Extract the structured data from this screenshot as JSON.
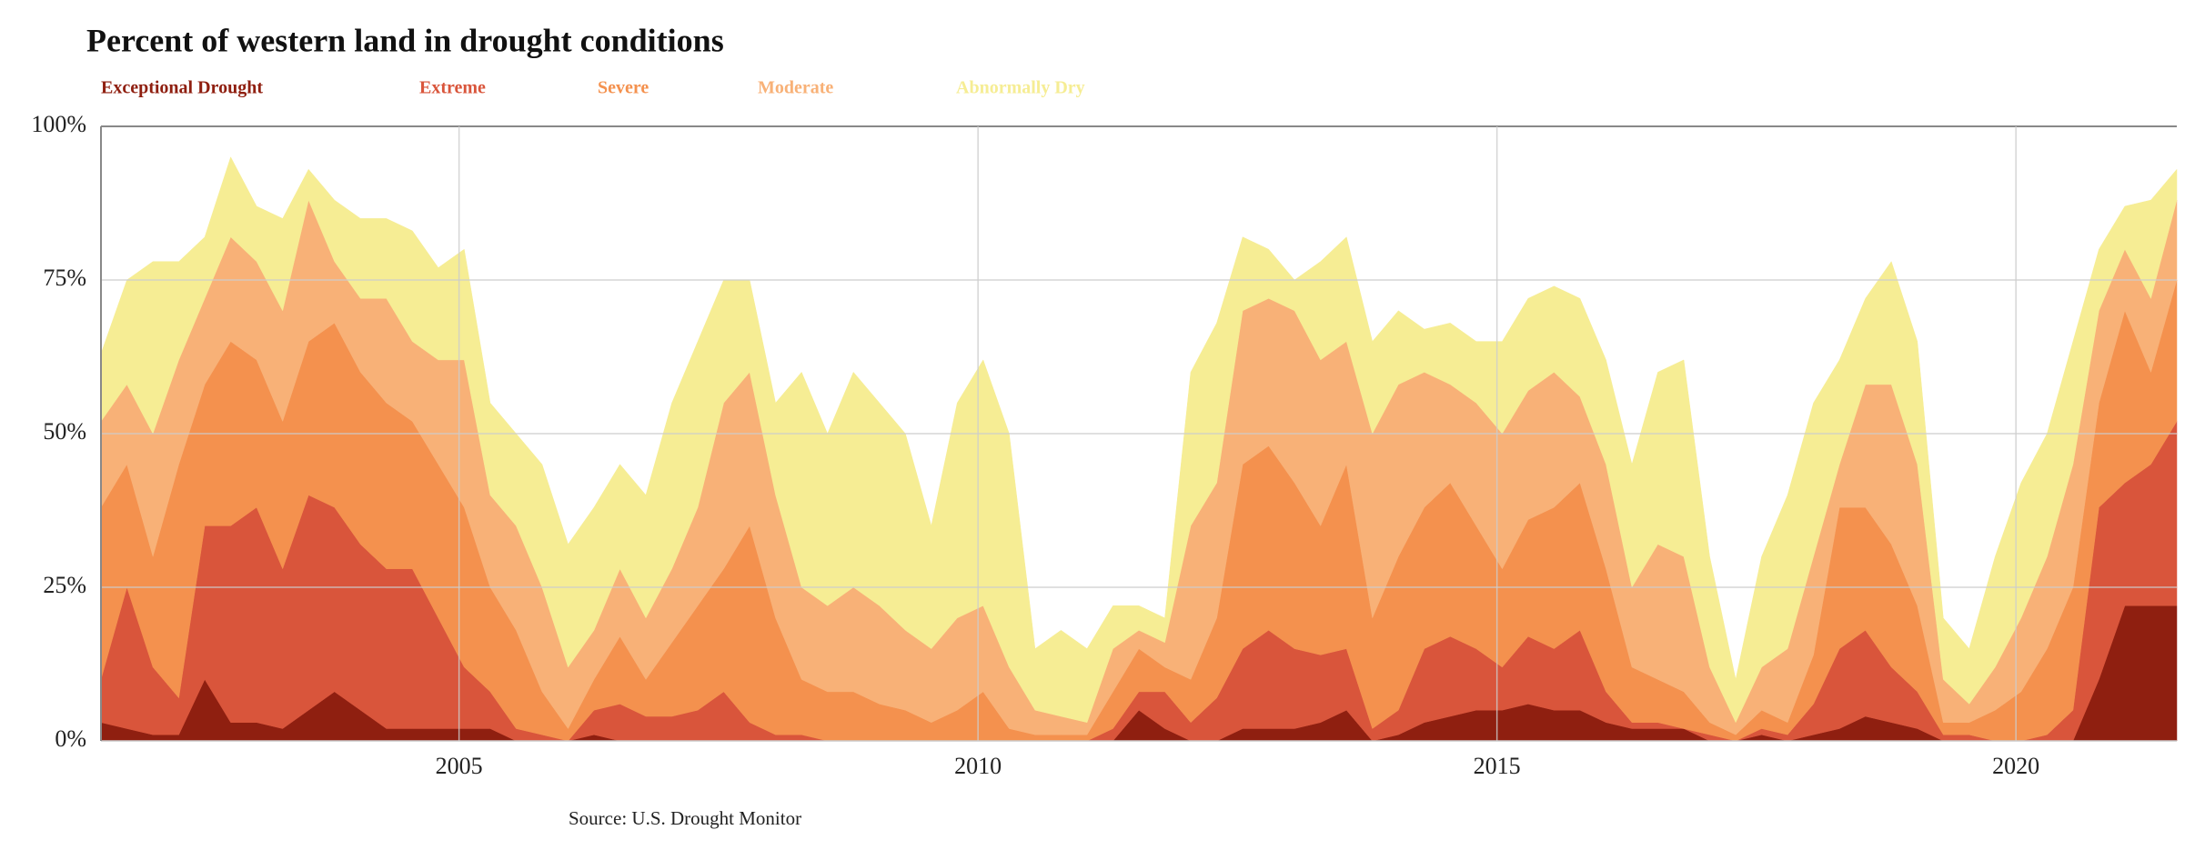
{
  "chart_data": {
    "type": "stacked_area",
    "title": "Percent of western land in drought conditions",
    "source": "Source: U.S. Drought Monitor",
    "x": [
      2001.55,
      2001.8,
      2002.05,
      2002.3,
      2002.55,
      2002.8,
      2003.05,
      2003.3,
      2003.55,
      2003.8,
      2004.05,
      2004.3,
      2004.55,
      2004.8,
      2005.05,
      2005.3,
      2005.55,
      2005.8,
      2006.05,
      2006.3,
      2006.55,
      2006.8,
      2007.05,
      2007.3,
      2007.55,
      2007.8,
      2008.05,
      2008.3,
      2008.55,
      2008.8,
      2009.05,
      2009.3,
      2009.55,
      2009.8,
      2010.05,
      2010.3,
      2010.55,
      2010.8,
      2011.05,
      2011.3,
      2011.55,
      2011.8,
      2012.05,
      2012.3,
      2012.55,
      2012.8,
      2013.05,
      2013.3,
      2013.55,
      2013.8,
      2014.05,
      2014.3,
      2014.55,
      2014.8,
      2015.05,
      2015.3,
      2015.55,
      2015.8,
      2016.05,
      2016.3,
      2016.55,
      2016.8,
      2017.05,
      2017.3,
      2017.55,
      2017.8,
      2018.05,
      2018.3,
      2018.55,
      2018.8,
      2019.05,
      2019.3,
      2019.55,
      2019.8,
      2020.05,
      2020.3,
      2020.55,
      2020.8,
      2021.05,
      2021.3,
      2021.55
    ],
    "xlim": [
      2001.55,
      2021.55
    ],
    "xticks": [
      2005,
      2010,
      2015,
      2020
    ],
    "ylim": [
      0,
      100
    ],
    "yticks": [
      {
        "value": 0,
        "label": "0%"
      },
      {
        "value": 25,
        "label": "25%"
      },
      {
        "value": 50,
        "label": "50%"
      },
      {
        "value": 75,
        "label": "75%"
      },
      {
        "value": 100,
        "label": "100%"
      }
    ],
    "grid": true,
    "legend": "top-left",
    "series": [
      {
        "name": "Exceptional Drought",
        "color": "#8f1f10",
        "values": [
          3,
          2,
          1,
          1,
          10,
          3,
          3,
          2,
          5,
          8,
          5,
          2,
          2,
          2,
          2,
          2,
          0,
          0,
          0,
          1,
          0,
          0,
          0,
          0,
          0,
          0,
          0,
          0,
          0,
          0,
          0,
          0,
          0,
          0,
          0,
          0,
          0,
          0,
          0,
          0,
          5,
          2,
          0,
          0,
          2,
          2,
          2,
          3,
          5,
          0,
          1,
          3,
          4,
          5,
          5,
          6,
          5,
          5,
          3,
          2,
          2,
          2,
          0,
          0,
          1,
          0,
          1,
          2,
          4,
          3,
          2,
          0,
          0,
          0,
          0,
          0,
          0,
          10,
          22,
          22,
          22
        ]
      },
      {
        "name": "Extreme",
        "color": "#d9553b",
        "values": [
          7,
          23,
          11,
          6,
          25,
          32,
          35,
          26,
          35,
          30,
          27,
          26,
          26,
          18,
          10,
          6,
          2,
          1,
          0,
          4,
          6,
          4,
          4,
          5,
          8,
          3,
          1,
          1,
          0,
          0,
          0,
          0,
          0,
          0,
          0,
          0,
          0,
          0,
          0,
          2,
          3,
          6,
          3,
          7,
          13,
          16,
          13,
          11,
          10,
          2,
          4,
          12,
          13,
          10,
          7,
          11,
          10,
          13,
          5,
          1,
          1,
          0,
          1,
          0,
          1,
          1,
          5,
          13,
          14,
          9,
          6,
          1,
          1,
          0,
          0,
          1,
          5,
          28,
          20,
          23,
          30
        ]
      },
      {
        "name": "Severe",
        "color": "#f4914e",
        "values": [
          28,
          20,
          18,
          38,
          23,
          30,
          24,
          24,
          25,
          30,
          28,
          27,
          24,
          25,
          26,
          17,
          16,
          7,
          2,
          5,
          11,
          6,
          12,
          17,
          20,
          32,
          19,
          9,
          8,
          8,
          6,
          5,
          3,
          5,
          8,
          2,
          1,
          1,
          1,
          6,
          7,
          4,
          7,
          13,
          30,
          30,
          27,
          21,
          30,
          18,
          25,
          23,
          25,
          20,
          16,
          19,
          23,
          24,
          20,
          9,
          7,
          6,
          2,
          1,
          3,
          2,
          8,
          23,
          20,
          20,
          14,
          2,
          2,
          5,
          8,
          14,
          20,
          17,
          28,
          15,
          23
        ]
      },
      {
        "name": "Moderate",
        "color": "#f8b177",
        "values": [
          14,
          13,
          20,
          17,
          14,
          17,
          16,
          18,
          23,
          10,
          12,
          17,
          13,
          17,
          24,
          15,
          17,
          17,
          10,
          8,
          11,
          10,
          12,
          16,
          27,
          25,
          20,
          15,
          14,
          17,
          16,
          13,
          12,
          15,
          14,
          10,
          4,
          3,
          2,
          7,
          3,
          4,
          25,
          22,
          25,
          24,
          28,
          27,
          20,
          30,
          28,
          22,
          16,
          20,
          22,
          21,
          22,
          14,
          17,
          13,
          22,
          22,
          9,
          2,
          7,
          12,
          16,
          7,
          20,
          26,
          23,
          7,
          3,
          7,
          12,
          15,
          20,
          15,
          10,
          12,
          13
        ]
      },
      {
        "name": "Abnormally Dry",
        "color": "#f6ed94",
        "values": [
          11,
          17,
          28,
          16,
          10,
          13,
          9,
          15,
          5,
          10,
          13,
          13,
          18,
          15,
          18,
          15,
          15,
          20,
          20,
          20,
          17,
          20,
          27,
          27,
          20,
          15,
          15,
          35,
          28,
          35,
          33,
          32,
          20,
          35,
          40,
          38,
          10,
          14,
          12,
          7,
          4,
          4,
          25,
          26,
          12,
          8,
          5,
          16,
          17,
          15,
          12,
          7,
          10,
          10,
          15,
          15,
          14,
          16,
          17,
          20,
          28,
          32,
          18,
          7,
          18,
          25,
          25,
          17,
          14,
          20,
          20,
          10,
          9,
          18,
          22,
          20,
          20,
          10,
          7,
          16,
          5
        ]
      }
    ]
  }
}
